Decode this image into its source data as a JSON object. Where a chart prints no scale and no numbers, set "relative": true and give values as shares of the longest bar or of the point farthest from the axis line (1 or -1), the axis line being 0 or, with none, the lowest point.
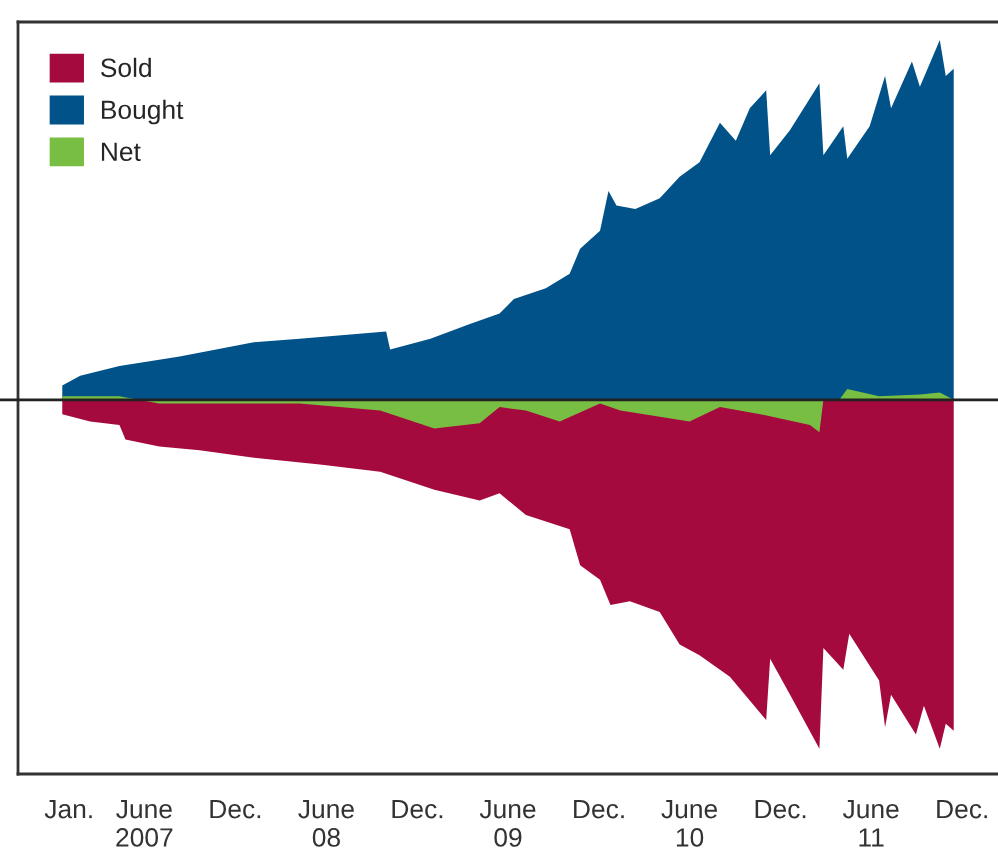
{
  "chart_data": {
    "type": "area",
    "relative": true,
    "legend": "top left",
    "grid": false,
    "xlim": [
      "2006-10-04",
      "2012-02-25"
    ],
    "xticks": [
      {
        "value": "2007-01-15",
        "label": "Jan."
      },
      {
        "value": "2007-06-15",
        "label": "June\n2007"
      },
      {
        "value": "2007-12-15",
        "label": "Dec."
      },
      {
        "value": "2008-06-15",
        "label": "June\n08"
      },
      {
        "value": "2008-12-15",
        "label": "Dec."
      },
      {
        "value": "2009-06-15",
        "label": "June\n09"
      },
      {
        "value": "2009-12-15",
        "label": "Dec."
      },
      {
        "value": "2010-06-15",
        "label": "June\n10"
      },
      {
        "value": "2010-12-15",
        "label": "Dec."
      },
      {
        "value": "2011-06-15",
        "label": "June\n11"
      },
      {
        "value": "2011-12-15",
        "label": "Dec."
      }
    ],
    "series": [
      {
        "name": "Sold",
        "color": "#a50a3e",
        "x": [
          "2007-01-01",
          "2007-02-26",
          "2007-04-26",
          "2007-05-08",
          "2007-07-15",
          "2007-10-04",
          "2008-01-14",
          "2008-06-02",
          "2008-10-01",
          "2009-01-18",
          "2009-04-19",
          "2009-05-29",
          "2009-07-21",
          "2009-10-17",
          "2009-11-07",
          "2009-12-17",
          "2010-01-07",
          "2010-02-15",
          "2010-04-16",
          "2010-05-26",
          "2010-07-05",
          "2010-09-04",
          "2010-11-16",
          "2010-11-24",
          "2011-01-03",
          "2011-03-03",
          "2011-03-11",
          "2011-04-20",
          "2011-05-02",
          "2011-07-01",
          "2011-07-13",
          "2011-07-25",
          "2011-09-13",
          "2011-09-29",
          "2011-10-31",
          "2011-11-12",
          "2011-11-28"
        ],
        "values": [
          -0.04,
          -0.06,
          -0.07,
          -0.11,
          -0.13,
          -0.14,
          -0.16,
          -0.18,
          -0.2,
          -0.25,
          -0.28,
          -0.26,
          -0.32,
          -0.36,
          -0.46,
          -0.5,
          -0.57,
          -0.56,
          -0.59,
          -0.68,
          -0.71,
          -0.77,
          -0.89,
          -0.72,
          -0.82,
          -0.97,
          -0.69,
          -0.75,
          -0.65,
          -0.78,
          -0.91,
          -0.82,
          -0.93,
          -0.85,
          -0.97,
          -0.9,
          -0.92
        ]
      },
      {
        "name": "Bought",
        "color": "#005289",
        "x": [
          "2007-01-01",
          "2007-02-06",
          "2007-04-26",
          "2007-08-25",
          "2008-01-21",
          "2008-04-22",
          "2008-10-13",
          "2008-10-21",
          "2009-01-10",
          "2009-03-29",
          "2009-05-29",
          "2009-06-27",
          "2009-08-30",
          "2009-10-17",
          "2009-11-07",
          "2009-12-17",
          "2010-01-03",
          "2010-01-19",
          "2010-02-26",
          "2010-04-16",
          "2010-05-26",
          "2010-07-05",
          "2010-08-15",
          "2010-09-16",
          "2010-10-14",
          "2010-11-16",
          "2010-11-24",
          "2011-01-03",
          "2011-03-03",
          "2011-03-11",
          "2011-04-20",
          "2011-04-28",
          "2011-06-12",
          "2011-07-13",
          "2011-07-25",
          "2011-09-05",
          "2011-09-21",
          "2011-10-31",
          "2011-11-12",
          "2011-11-28"
        ],
        "values": [
          0.04,
          0.067,
          0.094,
          0.12,
          0.16,
          0.17,
          0.19,
          0.14,
          0.17,
          0.21,
          0.24,
          0.28,
          0.31,
          0.35,
          0.42,
          0.47,
          0.58,
          0.54,
          0.53,
          0.56,
          0.62,
          0.66,
          0.77,
          0.72,
          0.81,
          0.86,
          0.68,
          0.75,
          0.88,
          0.68,
          0.76,
          0.67,
          0.76,
          0.9,
          0.81,
          0.94,
          0.87,
          1.0,
          0.9,
          0.92
        ]
      },
      {
        "name": "Net",
        "color": "#78be43",
        "x": [
          "2007-01-01",
          "2007-04-26",
          "2007-07-15",
          "2008-04-22",
          "2008-10-01",
          "2009-01-18",
          "2009-04-19",
          "2009-05-29",
          "2009-07-21",
          "2009-09-27",
          "2009-12-17",
          "2010-01-27",
          "2010-06-15",
          "2010-08-15",
          "2010-11-04",
          "2011-02-12",
          "2011-03-03",
          "2011-03-11",
          "2011-04-12",
          "2011-04-28",
          "2011-07-01",
          "2011-09-21",
          "2011-10-31",
          "2011-11-28"
        ],
        "values": [
          0.01,
          0.01,
          -0.01,
          -0.01,
          -0.03,
          -0.08,
          -0.065,
          -0.02,
          -0.03,
          -0.06,
          -0.01,
          -0.03,
          -0.06,
          -0.02,
          -0.04,
          -0.07,
          -0.09,
          0.0,
          0.0,
          0.03,
          0.01,
          0.015,
          0.02,
          0.0
        ]
      }
    ]
  }
}
